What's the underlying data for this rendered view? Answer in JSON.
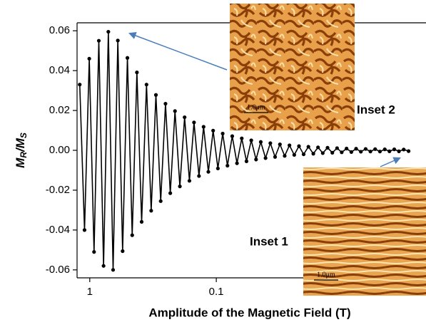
{
  "chart_data": {
    "type": "line",
    "x_label": "Amplitude of the Magnetic Field (T)",
    "y_label_parts": [
      "M",
      "R",
      "/M",
      "S"
    ],
    "x": [
      1.2,
      1.1,
      1.009,
      0.925,
      0.848,
      0.778,
      0.713,
      0.654,
      0.6,
      0.55,
      0.504,
      0.462,
      0.424,
      0.389,
      0.356,
      0.327,
      0.3,
      0.275,
      0.252,
      0.231,
      0.212,
      0.194,
      0.178,
      0.163,
      0.15,
      0.137,
      0.126,
      0.1155,
      0.1059,
      0.0971,
      0.089,
      0.0816,
      0.0748,
      0.0686,
      0.0629,
      0.0577,
      0.0529,
      0.0485,
      0.0445,
      0.0408,
      0.0374,
      0.0343,
      0.0314,
      0.0288,
      0.0264,
      0.0242,
      0.0222,
      0.0204,
      0.0187,
      0.0171,
      0.0157,
      0.0144,
      0.0132,
      0.0121,
      0.0111,
      0.0102,
      0.00934,
      0.00856,
      0.00785,
      0.0072,
      0.0066,
      0.00605,
      0.00555,
      0.00509,
      0.00466,
      0.00428,
      0.00392,
      0.0036,
      0.0033,
      0.00302
    ],
    "values": [
      0.033,
      -0.04,
      0.046,
      -0.051,
      0.055,
      -0.058,
      0.0595,
      -0.06,
      0.0551,
      -0.0506,
      0.0464,
      -0.0426,
      0.0391,
      -0.0359,
      0.033,
      -0.0303,
      0.0278,
      -0.0255,
      0.0234,
      -0.0215,
      0.0197,
      -0.0181,
      0.0166,
      -0.0153,
      0.014,
      -0.0129,
      0.0118,
      -0.0108,
      0.0099,
      -0.0091,
      0.0084,
      -0.0077,
      0.0071,
      -0.0065,
      0.006,
      -0.0055,
      0.005,
      -0.0046,
      0.0042,
      -0.0039,
      0.0036,
      -0.0033,
      0.003,
      -0.0028,
      0.0025,
      -0.0023,
      0.0021,
      -0.002,
      0.0018,
      -0.0017,
      0.0015,
      -0.0014,
      0.0013,
      -0.0012,
      0.0011,
      -0.001,
      0.0009,
      -0.00085,
      0.0008,
      -0.0007,
      0.0007,
      -0.0006,
      0.0006,
      -0.0006,
      0.0005,
      -0.0005,
      0.0005,
      -0.0005,
      0.0004,
      -0.0004
    ],
    "color": "#000000",
    "x_log": true,
    "xlim": [
      1.26,
      0.0022
    ],
    "xticks": [
      1,
      0.1
    ],
    "ylim": [
      -0.064,
      0.064
    ],
    "yticks": [
      0.06,
      0.04,
      0.02,
      {
        "value": 0,
        "label": "0.00"
      },
      -0.02,
      -0.04,
      -0.06
    ],
    "insets": [
      {
        "label": "Inset 2",
        "scale_bar": "1.0μm"
      },
      {
        "label": "Inset 1",
        "scale_bar": "1.0μm"
      }
    ]
  }
}
